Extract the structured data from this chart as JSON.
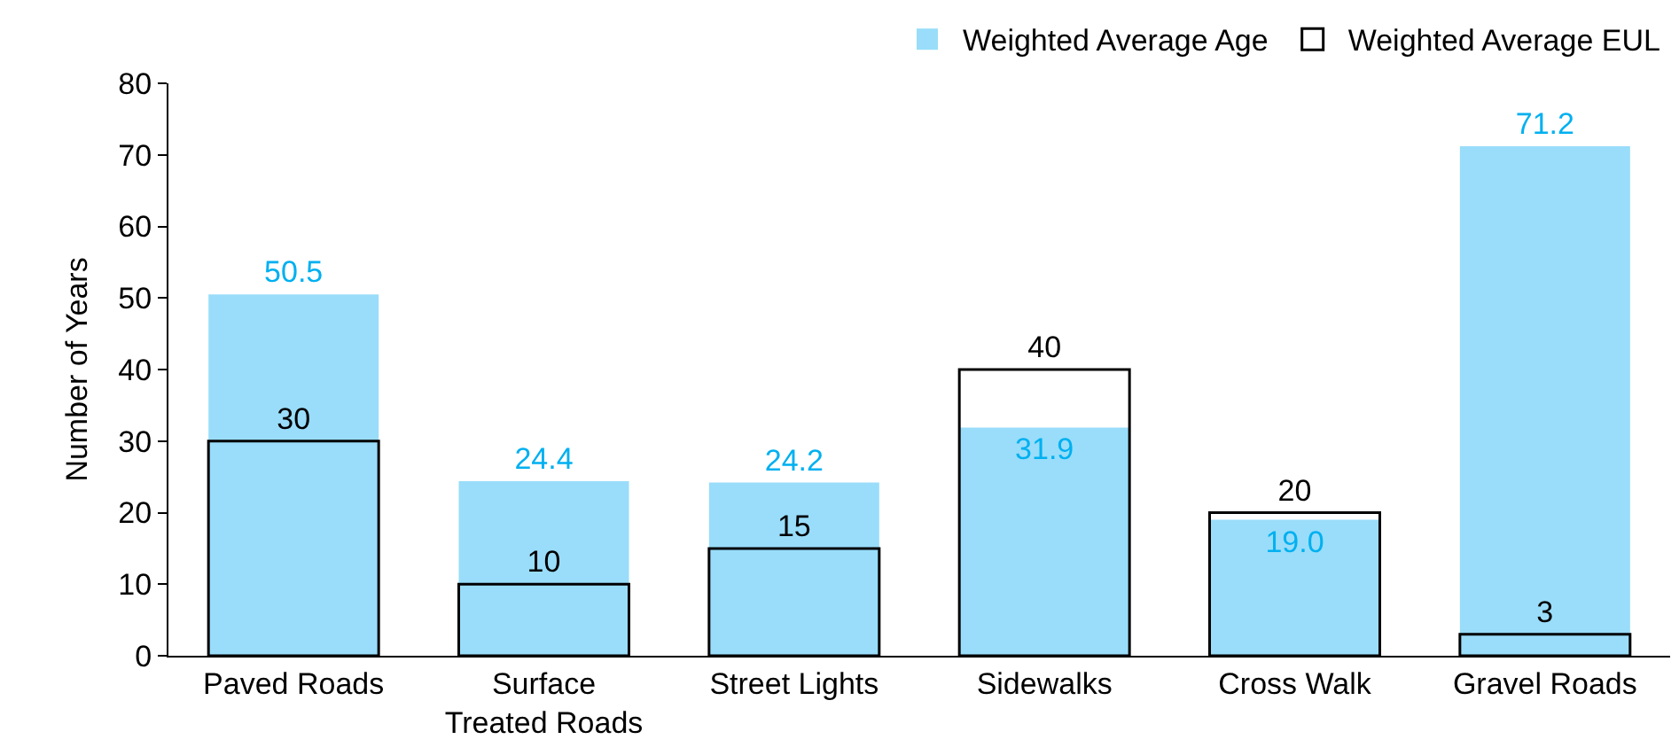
{
  "chart_data": {
    "type": "bar",
    "ylabel": "Number of Years",
    "categories": [
      "Paved Roads",
      "Surface Treated Roads",
      "Street Lights",
      "Sidewalks",
      "Cross Walk",
      "Gravel Roads"
    ],
    "series": [
      {
        "name": "Weighted Average Age",
        "color": "#99ddfa",
        "values": [
          50.5,
          24.4,
          24.2,
          31.9,
          19.0,
          71.2
        ],
        "value_labels": [
          "50.5",
          "24.4",
          "24.2",
          "31.9",
          "19.0",
          "71.2"
        ]
      },
      {
        "name": "Weighted Average EUL",
        "color": "#000000",
        "values": [
          30,
          10,
          15,
          40,
          20,
          3
        ],
        "value_labels": [
          "30",
          "10",
          "15",
          "40",
          "20",
          "3"
        ]
      }
    ],
    "ylim": [
      0,
      80
    ],
    "yticks": [
      0,
      10,
      20,
      30,
      40,
      50,
      60,
      70,
      80
    ],
    "grid": false,
    "legend": "top right"
  }
}
